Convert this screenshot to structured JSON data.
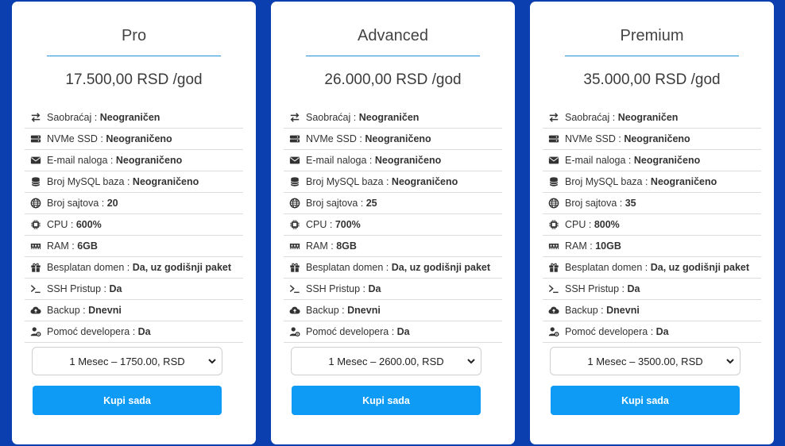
{
  "plans": [
    {
      "name": "Pro",
      "price": "17.500,00 RSD /god",
      "features": [
        {
          "icon": "arrows-exchange-icon",
          "label": "Saobraćaj : ",
          "value": "Neograničen"
        },
        {
          "icon": "hdd-icon",
          "label": "NVMe SSD : ",
          "value": "Neograničeno"
        },
        {
          "icon": "envelope-icon",
          "label": "E-mail naloga : ",
          "value": "Neograničeno"
        },
        {
          "icon": "database-icon",
          "label": "Broj MySQL baza : ",
          "value": "Neograničeno"
        },
        {
          "icon": "globe-icon",
          "label": "Broj sajtova : ",
          "value": "20"
        },
        {
          "icon": "cpu-icon",
          "label": "CPU : ",
          "value": "600%"
        },
        {
          "icon": "memory-icon",
          "label": "RAM : ",
          "value": "6GB"
        },
        {
          "icon": "gift-icon",
          "label": "Besplatan domen : ",
          "value": "Da, uz godišnji paket"
        },
        {
          "icon": "terminal-icon",
          "label": "SSH Pristup : ",
          "value": "Da"
        },
        {
          "icon": "cloud-upload-icon",
          "label": "Backup : ",
          "value": "Dnevni"
        },
        {
          "icon": "user-cog-icon",
          "label": "Pomoć developera : ",
          "value": "Da"
        }
      ],
      "selected_option": "1 Mesec – 1750.00, RSD",
      "buy_label": "Kupi sada"
    },
    {
      "name": "Advanced",
      "price": "26.000,00 RSD /god",
      "features": [
        {
          "icon": "arrows-exchange-icon",
          "label": "Saobraćaj : ",
          "value": "Neograničen"
        },
        {
          "icon": "hdd-icon",
          "label": "NVMe SSD : ",
          "value": "Neograničeno"
        },
        {
          "icon": "envelope-icon",
          "label": "E-mail naloga : ",
          "value": "Neograničeno"
        },
        {
          "icon": "database-icon",
          "label": "Broj MySQL baza : ",
          "value": "Neograničeno"
        },
        {
          "icon": "globe-icon",
          "label": "Broj sajtova : ",
          "value": "25"
        },
        {
          "icon": "cpu-icon",
          "label": "CPU : ",
          "value": "700%"
        },
        {
          "icon": "memory-icon",
          "label": "RAM : ",
          "value": "8GB"
        },
        {
          "icon": "gift-icon",
          "label": "Besplatan domen : ",
          "value": "Da, uz godišnji paket"
        },
        {
          "icon": "terminal-icon",
          "label": "SSH Pristup : ",
          "value": "Da"
        },
        {
          "icon": "cloud-upload-icon",
          "label": "Backup : ",
          "value": "Dnevni"
        },
        {
          "icon": "user-cog-icon",
          "label": "Pomoć developera : ",
          "value": "Da"
        }
      ],
      "selected_option": "1 Mesec – 2600.00, RSD",
      "buy_label": "Kupi sada"
    },
    {
      "name": "Premium",
      "price": "35.000,00 RSD /god",
      "features": [
        {
          "icon": "arrows-exchange-icon",
          "label": "Saobraćaj : ",
          "value": "Neograničen"
        },
        {
          "icon": "hdd-icon",
          "label": "NVMe SSD : ",
          "value": "Neograničeno"
        },
        {
          "icon": "envelope-icon",
          "label": "E-mail naloga : ",
          "value": "Neograničeno"
        },
        {
          "icon": "database-icon",
          "label": "Broj MySQL baza : ",
          "value": "Neograničeno"
        },
        {
          "icon": "globe-icon",
          "label": "Broj sajtova : ",
          "value": "35"
        },
        {
          "icon": "cpu-icon",
          "label": "CPU : ",
          "value": "800%"
        },
        {
          "icon": "memory-icon",
          "label": "RAM : ",
          "value": "10GB"
        },
        {
          "icon": "gift-icon",
          "label": "Besplatan domen : ",
          "value": "Da, uz godišnji paket"
        },
        {
          "icon": "terminal-icon",
          "label": "SSH Pristup : ",
          "value": "Da"
        },
        {
          "icon": "cloud-upload-icon",
          "label": "Backup : ",
          "value": "Dnevni"
        },
        {
          "icon": "user-cog-icon",
          "label": "Pomoć developera : ",
          "value": "Da"
        }
      ],
      "selected_option": "1 Mesec – 3500.00, RSD",
      "buy_label": "Kupi sada"
    }
  ],
  "colors": {
    "background": "#0b3fb0",
    "accent": "#0e9bf6",
    "divider": "#1e90d8"
  }
}
